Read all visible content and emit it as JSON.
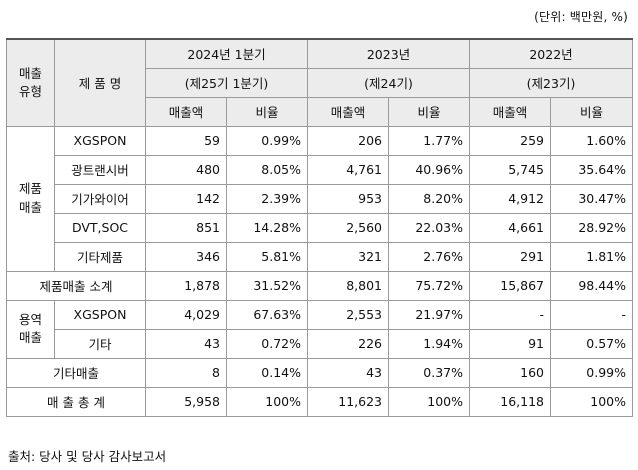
{
  "unit_note": "(단위: 백만원, %)",
  "header": {
    "type_label": "매출 유형",
    "product_label": "제 품 명",
    "periods": [
      {
        "year": "2024년 1분기",
        "term": "(제25기 1분기)"
      },
      {
        "year": "2023년",
        "term": "(제24기)"
      },
      {
        "year": "2022년",
        "term": "(제23기)"
      }
    ],
    "col_sales": "매출액",
    "col_ratio": "비율"
  },
  "groups": {
    "product": "제품 매출",
    "service": "용역 매출"
  },
  "rows": {
    "xgspon": {
      "name": "XGSPON",
      "v": [
        "59",
        "0.99%",
        "206",
        "1.77%",
        "259",
        "1.60%"
      ]
    },
    "transceiver": {
      "name": "광트랜시버",
      "v": [
        "480",
        "8.05%",
        "4,761",
        "40.96%",
        "5,745",
        "35.64%"
      ]
    },
    "gigawire": {
      "name": "기가와이어",
      "v": [
        "142",
        "2.39%",
        "953",
        "8.20%",
        "4,912",
        "30.47%"
      ]
    },
    "dvtsoc": {
      "name": "DVT,SOC",
      "v": [
        "851",
        "14.28%",
        "2,560",
        "22.03%",
        "4,661",
        "28.92%"
      ]
    },
    "etc_product": {
      "name": "기타제품",
      "v": [
        "346",
        "5.81%",
        "321",
        "2.76%",
        "291",
        "1.81%"
      ]
    },
    "product_subtotal": {
      "name": "제품매출 소계",
      "v": [
        "1,878",
        "31.52%",
        "8,801",
        "75.72%",
        "15,867",
        "98.44%"
      ]
    },
    "service_xgspon": {
      "name": "XGSPON",
      "v": [
        "4,029",
        "67.63%",
        "2,553",
        "21.97%",
        "-",
        "-"
      ]
    },
    "service_etc": {
      "name": "기타",
      "v": [
        "43",
        "0.72%",
        "226",
        "1.94%",
        "91",
        "0.57%"
      ]
    },
    "other_sales": {
      "name": "기타매출",
      "v": [
        "8",
        "0.14%",
        "43",
        "0.37%",
        "160",
        "0.99%"
      ]
    },
    "total": {
      "name": "매 출 총 계",
      "v": [
        "5,958",
        "100%",
        "11,623",
        "100%",
        "16,118",
        "100%"
      ]
    }
  },
  "source_note": "출처: 당사 및 당사 감사보고서"
}
